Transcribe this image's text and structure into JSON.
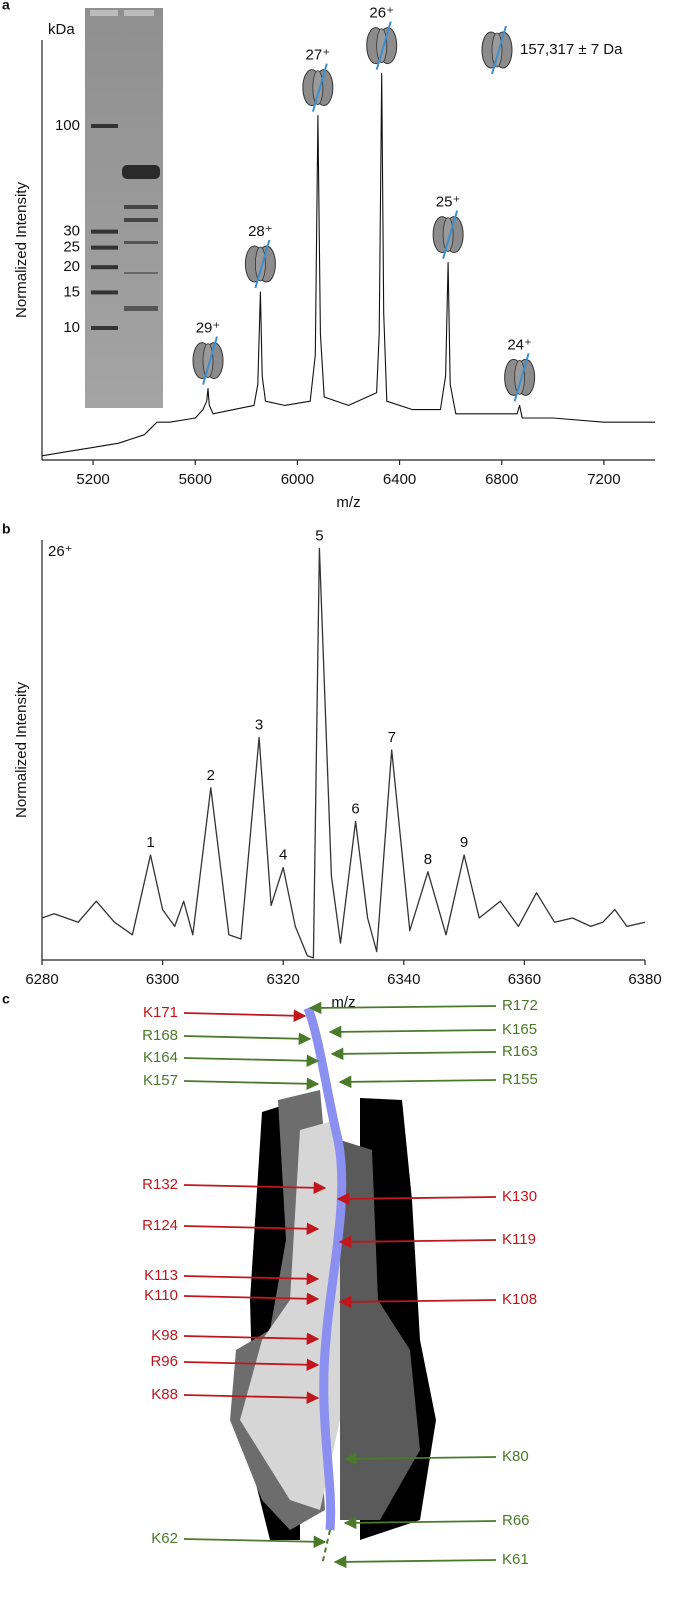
{
  "panel_labels": [
    "a",
    "b",
    "c"
  ],
  "chart_data": [
    {
      "type": "line",
      "x_label": "m/z",
      "y_label": "Normalized Intensity",
      "color": "#111111",
      "xlim": [
        5000,
        7400
      ],
      "xticks": [
        5200,
        5600,
        6000,
        6400,
        6800,
        7200
      ],
      "ylim": [
        0,
        100
      ],
      "x": [
        5000,
        5100,
        5200,
        5300,
        5400,
        5450,
        5500,
        5600,
        5630,
        5645,
        5650,
        5655,
        5670,
        5750,
        5830,
        5845,
        5855,
        5862,
        5875,
        5950,
        6050,
        6070,
        6080,
        6090,
        6105,
        6200,
        6310,
        6320,
        6330,
        6338,
        6350,
        6450,
        6560,
        6580,
        6590,
        6598,
        6620,
        6750,
        6860,
        6870,
        6880,
        7000,
        7200,
        7400
      ],
      "values": [
        1,
        2,
        3,
        4,
        6,
        9,
        9,
        10,
        12,
        14,
        17,
        13,
        11,
        12,
        13,
        18,
        40,
        20,
        14,
        13,
        14,
        25,
        82,
        30,
        15,
        13,
        16,
        30,
        92,
        35,
        14,
        12,
        12,
        20,
        47,
        18,
        11,
        11,
        11,
        13,
        10,
        10,
        9,
        9
      ],
      "annotations": [
        {
          "text": "29⁺",
          "x": 5650,
          "y": 17
        },
        {
          "text": "28⁺",
          "x": 5855,
          "y": 40
        },
        {
          "text": "27⁺",
          "x": 6080,
          "y": 82
        },
        {
          "text": "26⁺",
          "x": 6330,
          "y": 92
        },
        {
          "text": "25⁺",
          "x": 6590,
          "y": 47
        },
        {
          "text": "24⁺",
          "x": 6870,
          "y": 13
        }
      ],
      "legend_text": "157,317 ± 7 Da",
      "gel": {
        "unit_label": "kDa",
        "markers": [
          100,
          30,
          25,
          20,
          15,
          10
        ]
      }
    },
    {
      "type": "line",
      "x_label": "m/z",
      "y_label": "Normalized Intensity",
      "color": "#333333",
      "charge_label": "26⁺",
      "xlim": [
        6280,
        6380
      ],
      "xticks": [
        6280,
        6300,
        6320,
        6340,
        6360,
        6380
      ],
      "ylim": [
        0,
        100
      ],
      "x": [
        6280,
        6282,
        6284,
        6286,
        6289,
        6292,
        6295,
        6298,
        6300,
        6302,
        6303.5,
        6305,
        6308,
        6311,
        6313,
        6316,
        6318,
        6320,
        6322,
        6324,
        6325,
        6326,
        6328,
        6329.5,
        6332,
        6334,
        6335.5,
        6338,
        6341,
        6344,
        6347,
        6350,
        6352.5,
        6356,
        6359,
        6362,
        6365,
        6368,
        6371,
        6373,
        6375,
        6377,
        6380
      ],
      "values": [
        10,
        11,
        10,
        9,
        14,
        9,
        6,
        25,
        12,
        8,
        14,
        6,
        41,
        6,
        5,
        53,
        13,
        22,
        8,
        1,
        0.5,
        98,
        20,
        4,
        33,
        10,
        2,
        50,
        7,
        21,
        6,
        25,
        10,
        14,
        8,
        16,
        9,
        10,
        8,
        9,
        12,
        8,
        9
      ],
      "annotations": [
        {
          "text": "1",
          "x": 6298,
          "y": 25
        },
        {
          "text": "2",
          "x": 6308,
          "y": 41
        },
        {
          "text": "3",
          "x": 6316,
          "y": 53
        },
        {
          "text": "4",
          "x": 6320,
          "y": 22
        },
        {
          "text": "5",
          "x": 6326,
          "y": 98
        },
        {
          "text": "6",
          "x": 6332,
          "y": 33
        },
        {
          "text": "7",
          "x": 6338,
          "y": 50
        },
        {
          "text": "8",
          "x": 6344,
          "y": 21
        },
        {
          "text": "9",
          "x": 6350,
          "y": 25
        }
      ]
    }
  ],
  "structure": {
    "left_labels": [
      {
        "text": "K171",
        "color": "#c0161c"
      },
      {
        "text": "R168",
        "color": "#4a7a2a"
      },
      {
        "text": "K164",
        "color": "#4a7a2a"
      },
      {
        "text": "K157",
        "color": "#4a7a2a"
      },
      {
        "text": "R132",
        "color": "#c0161c"
      },
      {
        "text": "R124",
        "color": "#c0161c"
      },
      {
        "text": "K113",
        "color": "#c0161c"
      },
      {
        "text": "K110",
        "color": "#c0161c"
      },
      {
        "text": "K98",
        "color": "#c0161c"
      },
      {
        "text": "R96",
        "color": "#c0161c"
      },
      {
        "text": "K88",
        "color": "#c0161c"
      },
      {
        "text": "K62",
        "color": "#4a7a2a"
      }
    ],
    "right_labels": [
      {
        "text": "R172",
        "color": "#4a7a2a"
      },
      {
        "text": "K165",
        "color": "#4a7a2a"
      },
      {
        "text": "R163",
        "color": "#4a7a2a"
      },
      {
        "text": "R155",
        "color": "#4a7a2a"
      },
      {
        "text": "K130",
        "color": "#c0161c"
      },
      {
        "text": "K119",
        "color": "#c0161c"
      },
      {
        "text": "K108",
        "color": "#c0161c"
      },
      {
        "text": "K80",
        "color": "#4a7a2a"
      },
      {
        "text": "R66",
        "color": "#4a7a2a"
      },
      {
        "text": "K61",
        "color": "#4a7a2a"
      }
    ]
  }
}
